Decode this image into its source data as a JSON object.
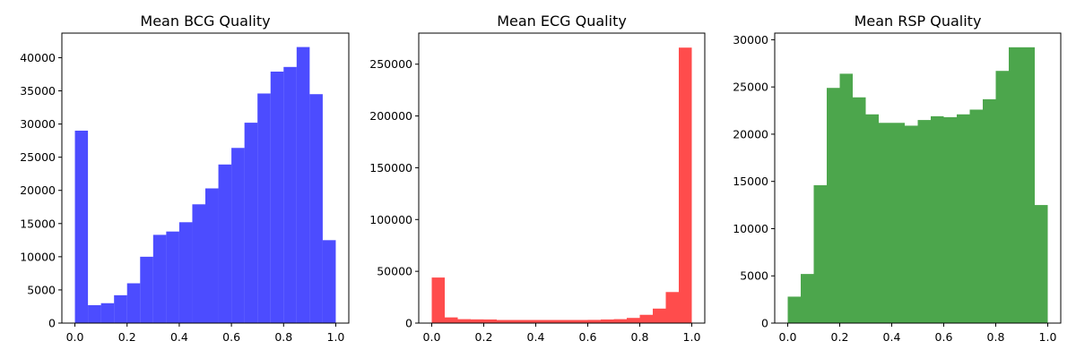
{
  "chart_data": [
    {
      "type": "bar",
      "subtype": "histogram",
      "title": "Mean BCG Quality",
      "xlabel": "",
      "ylabel": "",
      "color": "#0000ff",
      "opacity": 0.7,
      "bin_edges": [
        0.0,
        0.05,
        0.1,
        0.15,
        0.2,
        0.25,
        0.3,
        0.35,
        0.4,
        0.45,
        0.5,
        0.55,
        0.6,
        0.65,
        0.7,
        0.75,
        0.8,
        0.85,
        0.9,
        0.95,
        1.0
      ],
      "values": [
        29000,
        2700,
        3000,
        4200,
        6000,
        10000,
        13300,
        13800,
        15200,
        17900,
        20300,
        23900,
        26400,
        30200,
        34600,
        37900,
        38600,
        41600,
        34500,
        12500
      ],
      "xlim": [
        -0.05,
        1.05
      ],
      "ylim": [
        0,
        43700
      ],
      "xticks": [
        0.0,
        0.2,
        0.4,
        0.6,
        0.8,
        1.0
      ],
      "xtick_labels": [
        "0.0",
        "0.2",
        "0.4",
        "0.6",
        "0.8",
        "1.0"
      ],
      "yticks": [
        0,
        5000,
        10000,
        15000,
        20000,
        25000,
        30000,
        35000,
        40000
      ],
      "ytick_labels": [
        "0",
        "5000",
        "10000",
        "15000",
        "20000",
        "25000",
        "30000",
        "35000",
        "40000"
      ],
      "grid": false,
      "legend": "none"
    },
    {
      "type": "bar",
      "subtype": "histogram",
      "title": "Mean ECG Quality",
      "xlabel": "",
      "ylabel": "",
      "color": "#ff0000",
      "opacity": 0.7,
      "bin_edges": [
        0.0,
        0.05,
        0.1,
        0.15,
        0.2,
        0.25,
        0.3,
        0.35,
        0.4,
        0.45,
        0.5,
        0.55,
        0.6,
        0.65,
        0.7,
        0.75,
        0.8,
        0.85,
        0.9,
        0.95,
        1.0
      ],
      "values": [
        44000,
        5500,
        3800,
        3600,
        3500,
        3000,
        3000,
        3000,
        3000,
        3000,
        3000,
        3000,
        3100,
        3500,
        3800,
        5000,
        8000,
        14000,
        30000,
        266000
      ],
      "xlim": [
        -0.05,
        1.05
      ],
      "ylim": [
        0,
        280000
      ],
      "xticks": [
        0.0,
        0.2,
        0.4,
        0.6,
        0.8,
        1.0
      ],
      "xtick_labels": [
        "0.0",
        "0.2",
        "0.4",
        "0.6",
        "0.8",
        "1.0"
      ],
      "yticks": [
        0,
        50000,
        100000,
        150000,
        200000,
        250000
      ],
      "ytick_labels": [
        "0",
        "50000",
        "100000",
        "150000",
        "200000",
        "250000"
      ],
      "grid": false,
      "legend": "none"
    },
    {
      "type": "bar",
      "subtype": "histogram",
      "title": "Mean RSP Quality",
      "xlabel": "",
      "ylabel": "",
      "color": "#008000",
      "opacity": 0.7,
      "bin_edges": [
        0.0,
        0.05,
        0.1,
        0.15,
        0.2,
        0.25,
        0.3,
        0.35,
        0.4,
        0.45,
        0.5,
        0.55,
        0.6,
        0.65,
        0.7,
        0.75,
        0.8,
        0.85,
        0.9,
        0.95,
        1.0
      ],
      "values": [
        2800,
        5200,
        14600,
        24900,
        26400,
        23900,
        22100,
        21200,
        21200,
        20900,
        21500,
        21900,
        21800,
        22100,
        22600,
        23700,
        26700,
        29200,
        29200,
        12500
      ],
      "xlim": [
        -0.05,
        1.05
      ],
      "ylim": [
        0,
        30700
      ],
      "xticks": [
        0.0,
        0.2,
        0.4,
        0.6,
        0.8,
        1.0
      ],
      "xtick_labels": [
        "0.0",
        "0.2",
        "0.4",
        "0.6",
        "0.8",
        "1.0"
      ],
      "yticks": [
        0,
        5000,
        10000,
        15000,
        20000,
        25000,
        30000
      ],
      "ytick_labels": [
        "0",
        "5000",
        "10000",
        "15000",
        "20000",
        "25000",
        "30000"
      ],
      "grid": false,
      "legend": "none"
    }
  ]
}
